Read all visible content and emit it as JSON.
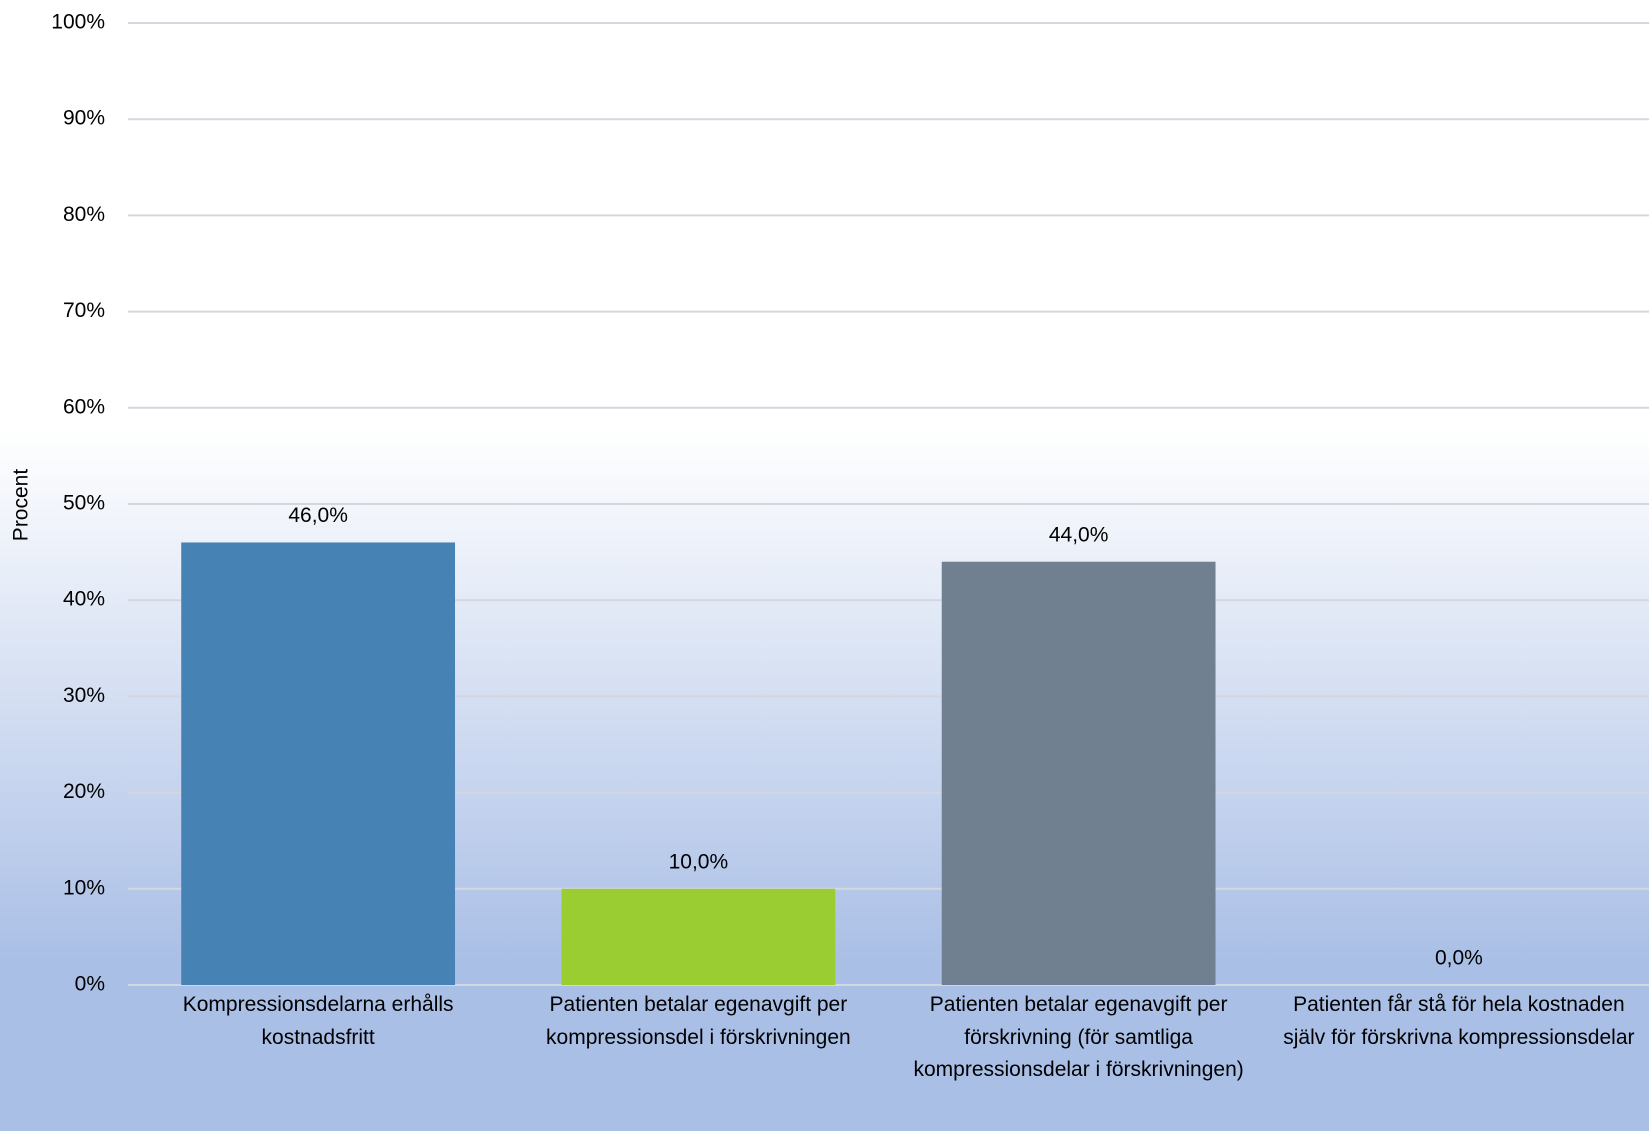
{
  "chart_data": {
    "type": "bar",
    "ylabel": "Procent",
    "categories": [
      "Kompressionsdelarna erhålls kostnadsfritt",
      "Patienten betalar egenavgift per kompressionsdel i förskrivningen",
      "Patienten betalar egenavgift per förskrivning (för samtliga kompressionsdelar i förskrivningen)",
      "Patienten får stå för hela kostnaden själv för förskrivna kompressionsdelar"
    ],
    "values": [
      46,
      10,
      44,
      0
    ],
    "value_labels": [
      "46,0%",
      "10,0%",
      "44,0%",
      "0,0%"
    ],
    "colors": [
      "#4682b4",
      "#9acd32",
      "#708090",
      "#4f81bd"
    ],
    "ylim": [
      0,
      100
    ],
    "yticks": [
      {
        "value": 0,
        "label": "0%"
      },
      {
        "value": 10,
        "label": "10%"
      },
      {
        "value": 20,
        "label": "20%"
      },
      {
        "value": 30,
        "label": "30%"
      },
      {
        "value": 40,
        "label": "40%"
      },
      {
        "value": 50,
        "label": "50%"
      },
      {
        "value": 60,
        "label": "60%"
      },
      {
        "value": 70,
        "label": "70%"
      },
      {
        "value": 80,
        "label": "80%"
      },
      {
        "value": 90,
        "label": "90%"
      },
      {
        "value": 100,
        "label": "100%"
      }
    ],
    "grid": true
  }
}
